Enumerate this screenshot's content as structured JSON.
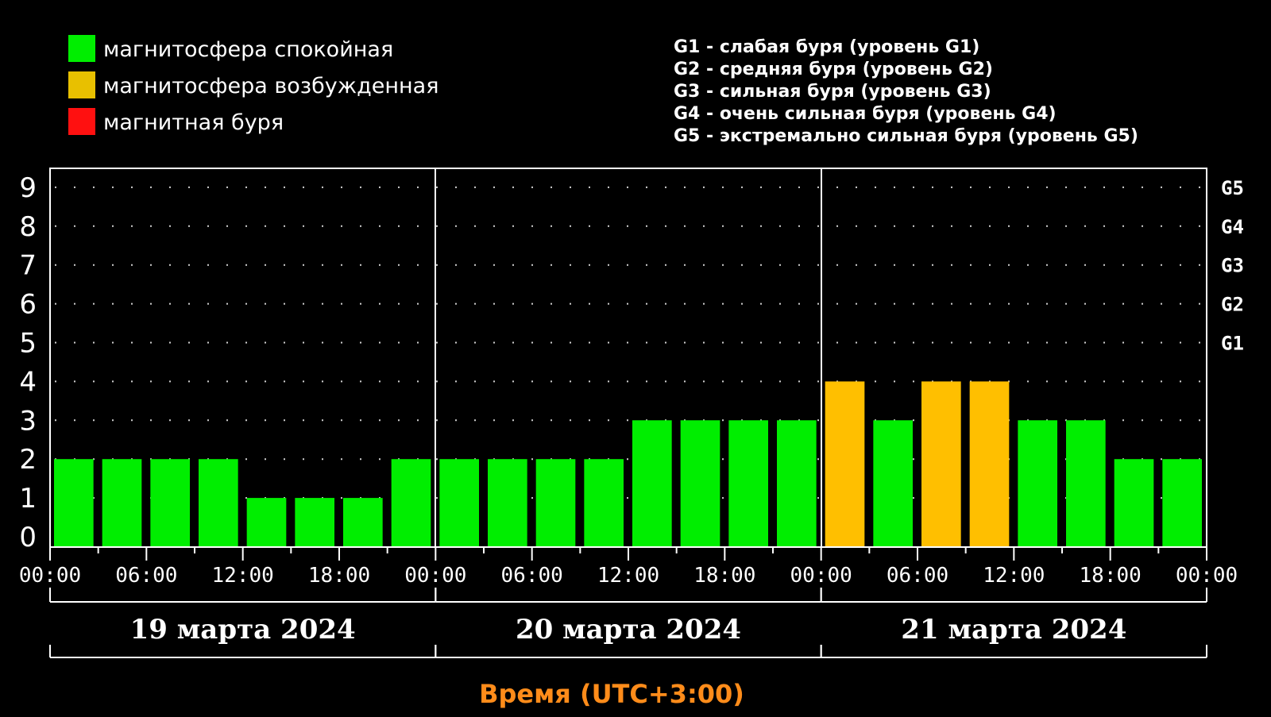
{
  "colors": {
    "background": "#000000",
    "quiet": "#00ee00",
    "disturbed": "#ffbf00",
    "storm": "#ff1010",
    "axis": "#ffffff",
    "xtitle": "#ff8c1a"
  },
  "legend": [
    {
      "label": "магнитосфера спокойная",
      "color": "#00ee00"
    },
    {
      "label": "магнитосфера возбужденная",
      "color": "#e8c000"
    },
    {
      "label": "магнитная буря",
      "color": "#ff1010"
    }
  ],
  "storm_levels": [
    "G1 - слабая буря (уровень G1)",
    "G2 - средняя буря (уровень G2)",
    "G3 - сильная буря (уровень G3)",
    "G4 - очень сильная буря (уровень G4)",
    "G5 - экстремально сильная буря (уровень G5)"
  ],
  "chart_data": {
    "type": "bar",
    "title": "",
    "xlabel": "Время (UTC+3:00)",
    "ylabel": "",
    "ylim": [
      0,
      9
    ],
    "y_ticks": [
      "0",
      "1",
      "2",
      "3",
      "4",
      "5",
      "6",
      "7",
      "8",
      "9"
    ],
    "g_ticks": [
      {
        "level": 5,
        "label": "G1"
      },
      {
        "level": 6,
        "label": "G2"
      },
      {
        "level": 7,
        "label": "G3"
      },
      {
        "level": 8,
        "label": "G4"
      },
      {
        "level": 9,
        "label": "G5"
      }
    ],
    "x_tick_labels": [
      "00:00",
      "06:00",
      "12:00",
      "18:00",
      "00:00",
      "06:00",
      "12:00",
      "18:00",
      "00:00",
      "06:00",
      "12:00",
      "18:00",
      "00:00"
    ],
    "days": [
      "19 марта 2024",
      "20 марта 2024",
      "21 марта 2024"
    ],
    "series": [
      {
        "values": [
          2,
          2,
          2,
          2,
          1,
          1,
          1,
          2,
          2,
          2,
          2,
          2,
          3,
          3,
          3,
          3,
          4,
          3,
          4,
          4,
          3,
          3,
          2,
          2
        ],
        "status": [
          "quiet",
          "quiet",
          "quiet",
          "quiet",
          "quiet",
          "quiet",
          "quiet",
          "quiet",
          "quiet",
          "quiet",
          "quiet",
          "quiet",
          "quiet",
          "quiet",
          "quiet",
          "quiet",
          "disturbed",
          "quiet",
          "disturbed",
          "disturbed",
          "quiet",
          "quiet",
          "quiet",
          "quiet"
        ]
      }
    ],
    "grid": true,
    "legend_position": "top-left"
  }
}
